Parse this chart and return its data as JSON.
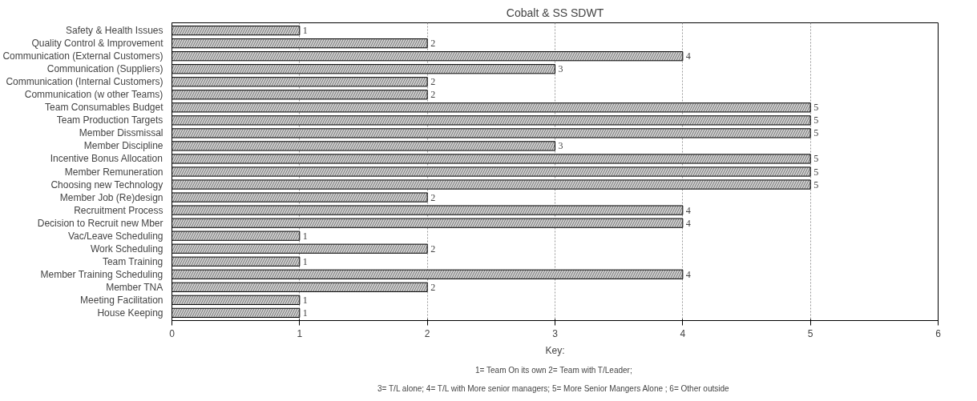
{
  "chart_data": {
    "type": "bar",
    "orientation": "horizontal",
    "title": "Cobalt & SS SDWT",
    "categories": [
      "Safety & Health Issues",
      "Quality Control & Improvement",
      "Communication (External Customers)",
      "Communication (Suppliers)",
      "Communication (Internal Customers)",
      "Communication (w other Teams)",
      "Team Consumables Budget",
      "Team Production Targets",
      "Member Dissmissal",
      "Member Discipline",
      "Incentive Bonus Allocation",
      "Member Remuneration",
      "Choosing new Technology",
      "Member Job (Re)design",
      "Recruitment Process",
      "Decision to Recruit new Mber",
      "Vac/Leave Scheduling",
      "Work Scheduling",
      "Team Training",
      "Member Training Scheduling",
      "Member TNA",
      "Meeting Facilitation",
      "House Keeping"
    ],
    "values": [
      1,
      2,
      4,
      3,
      2,
      2,
      5,
      5,
      5,
      3,
      5,
      5,
      5,
      2,
      4,
      4,
      1,
      2,
      1,
      4,
      2,
      1,
      1
    ],
    "color": "#cfcfcf",
    "xlim": [
      0,
      6
    ],
    "xticks": [
      0,
      1,
      2,
      3,
      4,
      5,
      6
    ],
    "grid": "x",
    "data_labels": true,
    "annotations": [
      "Key:",
      "1= Team On  its own 2= Team with T/Leader;",
      "3= T/L alone; 4= T/L with More senior managers; 5= More Senior Mangers Alone ;  6= Other outside"
    ]
  }
}
